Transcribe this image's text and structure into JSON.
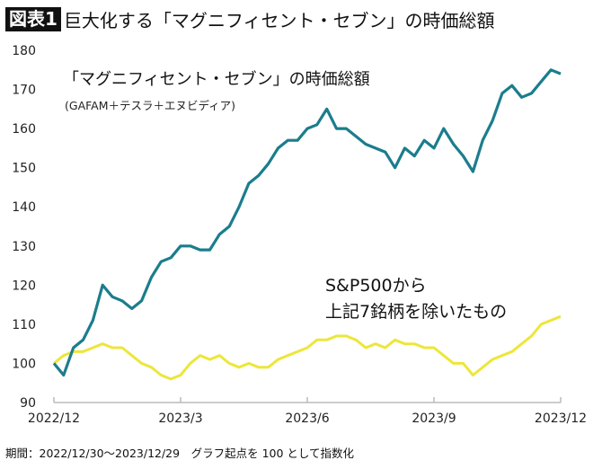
{
  "title": {
    "badge": "図表1",
    "text": "巨大化する「マグニフィセント・セブン」の時価総額"
  },
  "note": "期間：2022/12/30〜2023/12/29　グラフ起点を 100 として指数化",
  "chart_data": {
    "type": "line",
    "title": "巨大化する「マグニフィセント・セブン」の時価総額",
    "ylim": [
      90,
      180
    ],
    "yticks": [
      90,
      100,
      110,
      120,
      130,
      140,
      150,
      160,
      170,
      180
    ],
    "xlim": [
      "2022-12-30",
      "2023-12-29"
    ],
    "xticks": [
      {
        "date": "2022-12-30",
        "label": "2022/12"
      },
      {
        "date": "2023-03-31",
        "label": "2023/3"
      },
      {
        "date": "2023-06-30",
        "label": "2023/6"
      },
      {
        "date": "2023-09-29",
        "label": "2023/9"
      },
      {
        "date": "2023-12-29",
        "label": "2023/12"
      }
    ],
    "grid": false,
    "x": [
      "2022-12-30",
      "2023-01-06",
      "2023-01-13",
      "2023-01-20",
      "2023-01-27",
      "2023-02-03",
      "2023-02-10",
      "2023-02-17",
      "2023-02-24",
      "2023-03-03",
      "2023-03-10",
      "2023-03-17",
      "2023-03-24",
      "2023-03-31",
      "2023-04-07",
      "2023-04-14",
      "2023-04-21",
      "2023-04-28",
      "2023-05-05",
      "2023-05-12",
      "2023-05-19",
      "2023-05-26",
      "2023-06-02",
      "2023-06-09",
      "2023-06-16",
      "2023-06-23",
      "2023-06-30",
      "2023-07-07",
      "2023-07-14",
      "2023-07-21",
      "2023-07-28",
      "2023-08-04",
      "2023-08-11",
      "2023-08-18",
      "2023-08-25",
      "2023-09-01",
      "2023-09-08",
      "2023-09-15",
      "2023-09-22",
      "2023-09-29",
      "2023-10-06",
      "2023-10-13",
      "2023-10-20",
      "2023-10-27",
      "2023-11-03",
      "2023-11-10",
      "2023-11-17",
      "2023-11-24",
      "2023-12-01",
      "2023-12-08",
      "2023-12-15",
      "2023-12-22",
      "2023-12-29"
    ],
    "series": [
      {
        "name": "「マグニフィセント・セブン」の時価総額",
        "subtitle": "(GAFAM＋テスラ＋エヌビディア)",
        "color": "#1b7d8c",
        "values": [
          100,
          97,
          104,
          106,
          111,
          120,
          117,
          116,
          114,
          116,
          122,
          126,
          127,
          130,
          130,
          129,
          129,
          133,
          135,
          140,
          146,
          148,
          151,
          155,
          157,
          157,
          160,
          161,
          165,
          160,
          160,
          158,
          156,
          155,
          154,
          150,
          155,
          153,
          157,
          155,
          160,
          156,
          153,
          149,
          157,
          162,
          169,
          171,
          168,
          169,
          172,
          175,
          174
        ]
      },
      {
        "name": "S&P500から\n上記7銘柄を除いたもの",
        "label_lines": [
          "S&P500から",
          "上記7銘柄を除いたもの"
        ],
        "color": "#ede63a",
        "values": [
          100,
          102,
          103,
          103,
          104,
          105,
          104,
          104,
          102,
          100,
          99,
          97,
          96,
          97,
          100,
          102,
          101,
          102,
          100,
          99,
          100,
          99,
          99,
          101,
          102,
          103,
          104,
          106,
          106,
          107,
          107,
          106,
          104,
          105,
          104,
          106,
          105,
          105,
          104,
          104,
          102,
          100,
          100,
          97,
          99,
          101,
          102,
          103,
          105,
          107,
          110,
          111,
          112
        ]
      }
    ]
  }
}
